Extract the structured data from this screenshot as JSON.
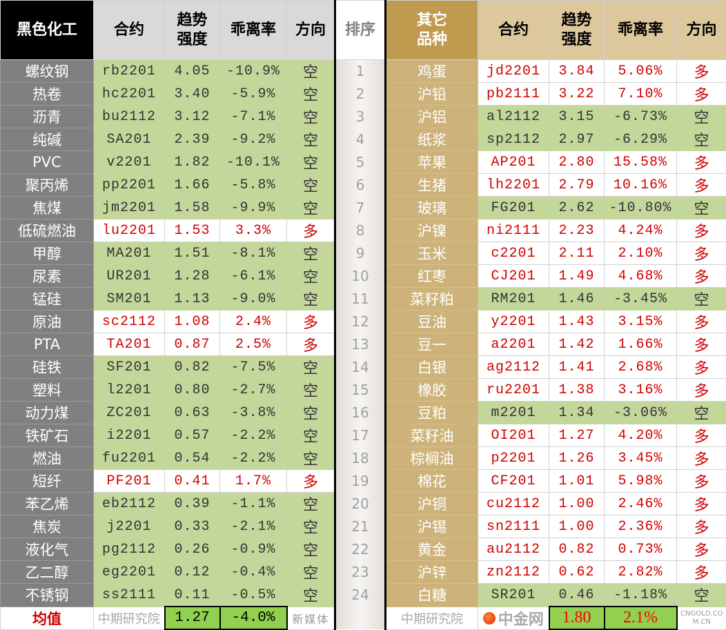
{
  "header": {
    "left_title": "黑色化工",
    "contract": "合约",
    "strength": "趋势强度",
    "deviation": "乖离率",
    "direction": "方向",
    "rank": "排序",
    "right_title": "其它品种"
  },
  "left_rows": [
    [
      "螺纹钢",
      "rb2201",
      "4.05",
      "-10.9%",
      "空"
    ],
    [
      "热卷",
      "hc2201",
      "3.40",
      "-5.9%",
      "空"
    ],
    [
      "沥青",
      "bu2112",
      "3.12",
      "-7.1%",
      "空"
    ],
    [
      "纯碱",
      "SA201",
      "2.39",
      "-9.2%",
      "空"
    ],
    [
      "PVC",
      "v2201",
      "1.82",
      "-10.1%",
      "空"
    ],
    [
      "聚丙烯",
      "pp2201",
      "1.66",
      "-5.8%",
      "空"
    ],
    [
      "焦煤",
      "jm2201",
      "1.58",
      "-9.9%",
      "空"
    ],
    [
      "低硫燃油",
      "lu2201",
      "1.53",
      "3.3%",
      "多"
    ],
    [
      "甲醇",
      "MA201",
      "1.51",
      "-8.1%",
      "空"
    ],
    [
      "尿素",
      "UR201",
      "1.28",
      "-6.1%",
      "空"
    ],
    [
      "锰硅",
      "SM201",
      "1.13",
      "-9.0%",
      "空"
    ],
    [
      "原油",
      "sc2112",
      "1.08",
      "2.4%",
      "多"
    ],
    [
      "PTA",
      "TA201",
      "0.87",
      "2.5%",
      "多"
    ],
    [
      "硅铁",
      "SF201",
      "0.82",
      "-7.5%",
      "空"
    ],
    [
      "塑料",
      "l2201",
      "0.80",
      "-2.7%",
      "空"
    ],
    [
      "动力煤",
      "ZC201",
      "0.63",
      "-3.8%",
      "空"
    ],
    [
      "铁矿石",
      "i2201",
      "0.57",
      "-2.2%",
      "空"
    ],
    [
      "燃油",
      "fu2201",
      "0.54",
      "-2.2%",
      "空"
    ],
    [
      "短纤",
      "PF201",
      "0.41",
      "1.7%",
      "多"
    ],
    [
      "苯乙烯",
      "eb2112",
      "0.39",
      "-1.1%",
      "空"
    ],
    [
      "焦炭",
      "j2201",
      "0.33",
      "-2.1%",
      "空"
    ],
    [
      "液化气",
      "pg2112",
      "0.26",
      "-0.9%",
      "空"
    ],
    [
      "乙二醇",
      "eg2201",
      "0.12",
      "-0.4%",
      "空"
    ],
    [
      "不锈钢",
      "ss2111",
      "0.11",
      "-0.5%",
      "空"
    ]
  ],
  "ranks": [
    "1",
    "2",
    "3",
    "4",
    "5",
    "6",
    "7",
    "8",
    "9",
    "10",
    "11",
    "12",
    "13",
    "14",
    "15",
    "16",
    "17",
    "18",
    "19",
    "20",
    "21",
    "22",
    "23",
    "24"
  ],
  "right_rows": [
    [
      "鸡蛋",
      "jd2201",
      "3.84",
      "5.06%",
      "多"
    ],
    [
      "沪铅",
      "pb2111",
      "3.22",
      "7.10%",
      "多"
    ],
    [
      "沪铝",
      "al2112",
      "3.15",
      "-6.73%",
      "空"
    ],
    [
      "纸浆",
      "sp2112",
      "2.97",
      "-6.29%",
      "空"
    ],
    [
      "苹果",
      "AP201",
      "2.80",
      "15.58%",
      "多"
    ],
    [
      "生猪",
      "lh2201",
      "2.79",
      "10.16%",
      "多"
    ],
    [
      "玻璃",
      "FG201",
      "2.62",
      "-10.80%",
      "空"
    ],
    [
      "沪镍",
      "ni2111",
      "2.23",
      "4.24%",
      "多"
    ],
    [
      "玉米",
      "c2201",
      "2.11",
      "2.10%",
      "多"
    ],
    [
      "红枣",
      "CJ201",
      "1.49",
      "4.68%",
      "多"
    ],
    [
      "菜籽粕",
      "RM201",
      "1.46",
      "-3.45%",
      "空"
    ],
    [
      "豆油",
      "y2201",
      "1.43",
      "3.15%",
      "多"
    ],
    [
      "豆一",
      "a2201",
      "1.42",
      "1.66%",
      "多"
    ],
    [
      "白银",
      "ag2112",
      "1.41",
      "2.68%",
      "多"
    ],
    [
      "橡胶",
      "ru2201",
      "1.38",
      "3.16%",
      "多"
    ],
    [
      "豆粕",
      "m2201",
      "1.34",
      "-3.06%",
      "空"
    ],
    [
      "菜籽油",
      "OI201",
      "1.27",
      "4.20%",
      "多"
    ],
    [
      "棕榈油",
      "p2201",
      "1.26",
      "3.45%",
      "多"
    ],
    [
      "棉花",
      "CF201",
      "1.01",
      "5.98%",
      "多"
    ],
    [
      "沪铜",
      "cu2112",
      "1.00",
      "2.46%",
      "多"
    ],
    [
      "沪锡",
      "sn2111",
      "1.00",
      "2.36%",
      "多"
    ],
    [
      "黄金",
      "au2112",
      "0.82",
      "0.73%",
      "多"
    ],
    [
      "沪锌",
      "zn2112",
      "0.62",
      "2.82%",
      "多"
    ],
    [
      "白糖",
      "SR201",
      "0.46",
      "-1.18%",
      "空"
    ]
  ],
  "footer": {
    "label": "均值",
    "left_strength_avg": "1.27",
    "left_deviation_avg": "-4.0%",
    "right_strength_avg": "1.80",
    "right_deviation_avg": "2.1%"
  },
  "watermark": {
    "text": "中期研究院",
    "logo_cn": "中金网",
    "logo_en": "CNGOLD.COM.CN",
    "logo_sub": "新媒体"
  },
  "colors": {
    "short_bg": "#c4d79b",
    "long_text": "#d00000",
    "avg_bg": "#92d050"
  }
}
